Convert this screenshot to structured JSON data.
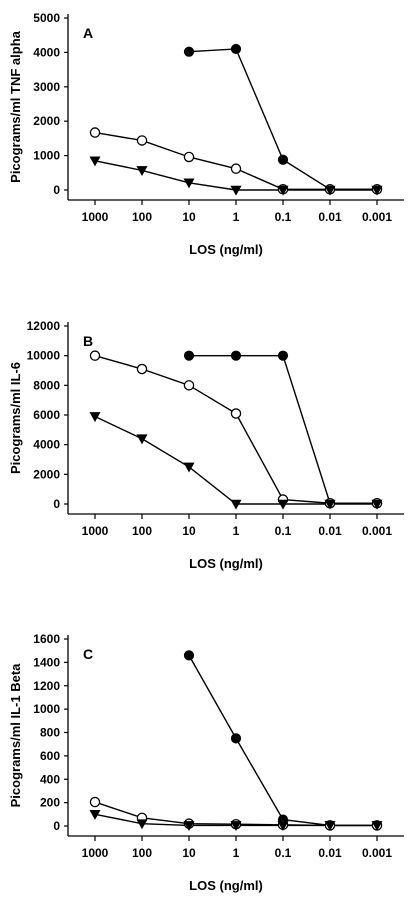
{
  "chart_data": [
    {
      "type": "line",
      "panel_label": "A",
      "xlabel": "LOS (ng/ml)",
      "ylabel": "Picograms/ml TNF alpha",
      "categories": [
        "1000",
        "100",
        "10",
        "1",
        "0.1",
        "0.01",
        "0.001"
      ],
      "ylim": [
        0,
        5000
      ],
      "yticks": [
        "0",
        "1000",
        "2000",
        "3000",
        "4000",
        "5000"
      ],
      "series": [
        {
          "marker": "filled-circle",
          "values": [
            null,
            null,
            4020,
            4100,
            880,
            20,
            20
          ]
        },
        {
          "marker": "open-circle",
          "values": [
            1670,
            1440,
            960,
            620,
            20,
            20,
            20
          ]
        },
        {
          "marker": "filled-triangle-down",
          "values": [
            850,
            570,
            210,
            0,
            0,
            0,
            0
          ]
        }
      ]
    },
    {
      "type": "line",
      "panel_label": "B",
      "xlabel": "LOS (ng/ml)",
      "ylabel": "Picograms/ml IL-6",
      "categories": [
        "1000",
        "100",
        "10",
        "1",
        "0.1",
        "0.01",
        "0.001"
      ],
      "ylim": [
        0,
        12000
      ],
      "yticks": [
        "0",
        "2000",
        "4000",
        "6000",
        "8000",
        "10000",
        "12000"
      ],
      "series": [
        {
          "marker": "filled-circle",
          "values": [
            null,
            null,
            10000,
            10000,
            10000,
            50,
            50
          ]
        },
        {
          "marker": "open-circle",
          "values": [
            10000,
            9100,
            8000,
            6100,
            300,
            50,
            50
          ]
        },
        {
          "marker": "filled-triangle-down",
          "values": [
            5900,
            4400,
            2500,
            0,
            0,
            0,
            0
          ]
        }
      ]
    },
    {
      "type": "line",
      "panel_label": "C",
      "xlabel": "LOS (ng/ml)",
      "ylabel": "Picograms/ml IL-1 Beta",
      "categories": [
        "1000",
        "100",
        "10",
        "1",
        "0.1",
        "0.01",
        "0.001"
      ],
      "ylim": [
        0,
        1600
      ],
      "yticks": [
        "0",
        "200",
        "400",
        "600",
        "800",
        "1000",
        "1200",
        "1400",
        "1600"
      ],
      "series": [
        {
          "marker": "filled-circle",
          "values": [
            null,
            null,
            1460,
            750,
            55,
            5,
            5
          ]
        },
        {
          "marker": "open-circle",
          "values": [
            205,
            70,
            20,
            15,
            10,
            5,
            5
          ]
        },
        {
          "marker": "filled-triangle-down",
          "values": [
            100,
            20,
            5,
            5,
            5,
            5,
            5
          ]
        }
      ]
    }
  ],
  "colors": {
    "ink": "#000000",
    "background": "#ffffff"
  }
}
